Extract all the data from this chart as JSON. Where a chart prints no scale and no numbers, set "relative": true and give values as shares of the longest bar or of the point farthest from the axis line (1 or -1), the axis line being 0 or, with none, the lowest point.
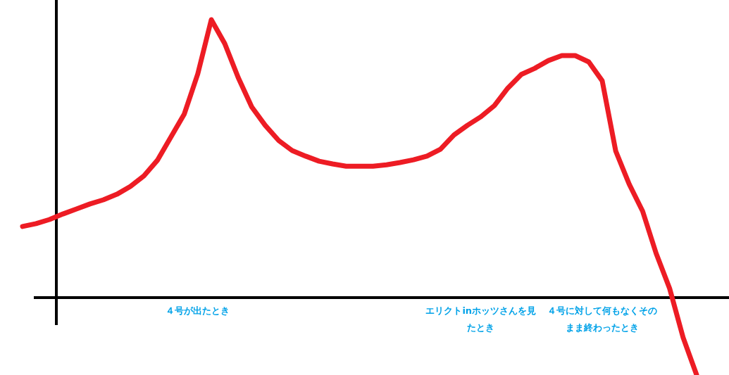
{
  "chart_data": {
    "type": "line",
    "relative": true,
    "categories": [
      null,
      null,
      null,
      null,
      null,
      null,
      null,
      null,
      null,
      null,
      null,
      null,
      null,
      "４号が出たとき",
      null,
      null,
      null,
      null,
      null,
      null,
      null,
      null,
      null,
      null,
      null,
      null,
      null,
      null,
      null,
      null,
      null,
      null,
      null,
      null,
      "エリクトinホッツさんを見たとき",
      null,
      null,
      null,
      null,
      null,
      null,
      null,
      null,
      "４号に対して何もなくそのまま終わったとき",
      null,
      null,
      null,
      null,
      null,
      null,
      null
    ],
    "series": [
      {
        "color": "#ed1c24",
        "values": [
          0.256,
          0.266,
          0.281,
          0.301,
          0.319,
          0.337,
          0.352,
          0.372,
          0.4,
          0.438,
          0.494,
          0.577,
          0.661,
          0.805,
          1,
          0.914,
          0.792,
          0.686,
          0.62,
          0.565,
          0.529,
          0.509,
          0.491,
          0.481,
          0.473,
          0.473,
          0.473,
          0.478,
          0.486,
          0.496,
          0.509,
          0.534,
          0.585,
          0.62,
          0.651,
          0.691,
          0.754,
          0.803,
          0.825,
          0.853,
          0.871,
          0.871,
          0.848,
          0.78,
          0.527,
          0.408,
          0.311,
          0.159,
          0.033,
          -0.144,
          -0.278
        ]
      }
    ]
  }
}
